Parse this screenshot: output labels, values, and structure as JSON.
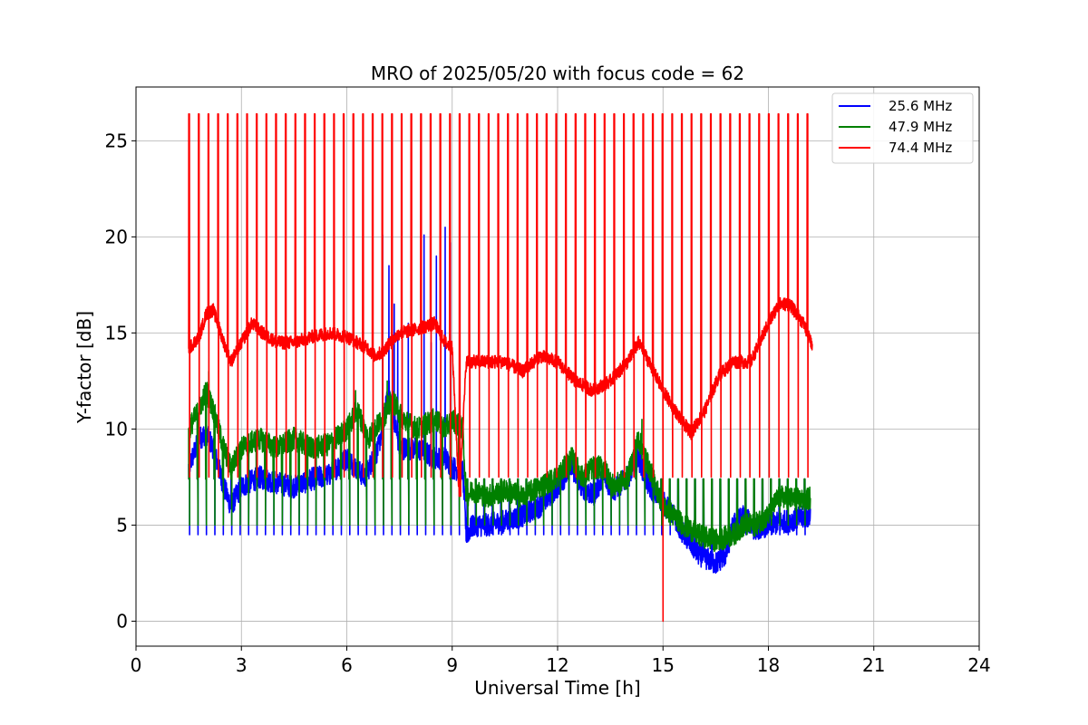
{
  "chart_data": {
    "type": "line",
    "title": "MRO of 2025/05/20 with focus code = 62",
    "xlabel": "Universal Time [h]",
    "ylabel": "Y-factor [dB]",
    "xlim": [
      0,
      24
    ],
    "ylim": [
      -1.3,
      27.8
    ],
    "xticks": [
      0,
      3,
      6,
      9,
      12,
      15,
      18,
      21,
      24
    ],
    "yticks": [
      0,
      5,
      10,
      15,
      20,
      25
    ],
    "grid": true,
    "legend_position": "top-right",
    "series": [
      {
        "name": "25.6 MHz",
        "color": "#0000ff",
        "baseline": [
          [
            1.5,
            8.0
          ],
          [
            1.8,
            9.5
          ],
          [
            2.0,
            9.8
          ],
          [
            2.2,
            9.0
          ],
          [
            2.5,
            7.0
          ],
          [
            2.7,
            6.0
          ],
          [
            3.0,
            7.0
          ],
          [
            3.5,
            7.5
          ],
          [
            4.0,
            7.2
          ],
          [
            4.5,
            7.0
          ],
          [
            5.0,
            7.4
          ],
          [
            5.5,
            7.6
          ],
          [
            6.0,
            8.5
          ],
          [
            6.5,
            7.5
          ],
          [
            6.9,
            9.0
          ],
          [
            7.2,
            12.0
          ],
          [
            7.5,
            9.0
          ],
          [
            8.0,
            9.0
          ],
          [
            8.5,
            8.5
          ],
          [
            8.8,
            8.5
          ],
          [
            9.0,
            8.0
          ],
          [
            9.3,
            7.8
          ],
          [
            9.4,
            4.5
          ],
          [
            9.6,
            5.0
          ],
          [
            10.0,
            5.0
          ],
          [
            10.5,
            5.2
          ],
          [
            11.0,
            5.5
          ],
          [
            11.5,
            6.0
          ],
          [
            12.0,
            7.0
          ],
          [
            12.4,
            8.0
          ],
          [
            12.7,
            7.0
          ],
          [
            13.0,
            6.5
          ],
          [
            13.3,
            7.5
          ],
          [
            13.6,
            6.8
          ],
          [
            14.0,
            7.5
          ],
          [
            14.3,
            8.5
          ],
          [
            14.6,
            7.0
          ],
          [
            15.0,
            6.2
          ],
          [
            15.3,
            5.5
          ],
          [
            15.6,
            4.5
          ],
          [
            16.0,
            3.5
          ],
          [
            16.5,
            3.0
          ],
          [
            16.8,
            3.5
          ],
          [
            17.0,
            5.0
          ],
          [
            17.3,
            5.5
          ],
          [
            17.6,
            4.8
          ],
          [
            18.0,
            5.0
          ],
          [
            18.5,
            5.2
          ],
          [
            19.0,
            5.4
          ],
          [
            19.2,
            5.5
          ]
        ],
        "pulses": {
          "start": 1.5,
          "step": 0.24,
          "end": 19.2,
          "high": 7.4,
          "low": 4.5
        },
        "spikes": [
          [
            7.02,
            20.1
          ],
          [
            7.2,
            18.5
          ],
          [
            7.45,
            15.0
          ],
          [
            7.75,
            15.5
          ],
          [
            8.2,
            20.1
          ],
          [
            8.55,
            19.0
          ],
          [
            8.8,
            20.5
          ],
          [
            8.95,
            19.7
          ],
          [
            7.35,
            16.5
          ],
          [
            8.4,
            14.5
          ]
        ]
      },
      {
        "name": "47.9 MHz",
        "color": "#008000",
        "baseline": [
          [
            1.5,
            10.0
          ],
          [
            1.8,
            11.0
          ],
          [
            2.0,
            12.0
          ],
          [
            2.2,
            11.0
          ],
          [
            2.5,
            9.0
          ],
          [
            2.7,
            8.0
          ],
          [
            3.0,
            9.0
          ],
          [
            3.5,
            9.5
          ],
          [
            4.0,
            9.0
          ],
          [
            4.5,
            9.5
          ],
          [
            5.0,
            9.0
          ],
          [
            5.5,
            9.2
          ],
          [
            6.0,
            10.0
          ],
          [
            6.3,
            11.0
          ],
          [
            6.6,
            9.5
          ],
          [
            7.0,
            10.5
          ],
          [
            7.3,
            11.5
          ],
          [
            7.6,
            10.5
          ],
          [
            8.0,
            10.0
          ],
          [
            8.5,
            10.5
          ],
          [
            8.8,
            10.0
          ],
          [
            9.0,
            10.5
          ],
          [
            9.3,
            10.0
          ],
          [
            9.4,
            6.5
          ],
          [
            9.6,
            6.8
          ],
          [
            10.0,
            6.5
          ],
          [
            10.5,
            6.8
          ],
          [
            11.0,
            6.5
          ],
          [
            11.5,
            7.0
          ],
          [
            12.0,
            7.5
          ],
          [
            12.4,
            8.5
          ],
          [
            12.7,
            7.5
          ],
          [
            13.0,
            8.0
          ],
          [
            13.3,
            8.0
          ],
          [
            13.6,
            7.0
          ],
          [
            14.0,
            7.5
          ],
          [
            14.3,
            9.5
          ],
          [
            14.6,
            8.0
          ],
          [
            15.0,
            6.0
          ],
          [
            15.3,
            5.5
          ],
          [
            15.6,
            5.0
          ],
          [
            16.0,
            4.5
          ],
          [
            16.5,
            4.2
          ],
          [
            17.0,
            4.5
          ],
          [
            17.3,
            5.0
          ],
          [
            17.6,
            5.0
          ],
          [
            18.0,
            5.5
          ],
          [
            18.3,
            6.5
          ],
          [
            18.6,
            6.4
          ],
          [
            19.0,
            6.3
          ],
          [
            19.2,
            6.4
          ]
        ],
        "pulses": {
          "start": 1.5,
          "step": 0.24,
          "end": 19.2,
          "high": 7.4,
          "low": 5.0
        },
        "spikes": [
          [
            2.07,
            13.0
          ],
          [
            6.25,
            12.0
          ],
          [
            7.15,
            12.5
          ],
          [
            12.25,
            8.8
          ],
          [
            14.4,
            10.5
          ]
        ]
      },
      {
        "name": "74.4 MHz",
        "color": "#ff0000",
        "baseline": [
          [
            1.5,
            14.2
          ],
          [
            1.8,
            14.8
          ],
          [
            2.0,
            16.0
          ],
          [
            2.2,
            16.2
          ],
          [
            2.5,
            14.5
          ],
          [
            2.7,
            13.5
          ],
          [
            3.0,
            14.5
          ],
          [
            3.3,
            15.5
          ],
          [
            3.6,
            15.0
          ],
          [
            4.0,
            14.5
          ],
          [
            4.5,
            14.5
          ],
          [
            5.0,
            14.8
          ],
          [
            5.5,
            15.0
          ],
          [
            6.0,
            14.8
          ],
          [
            6.3,
            14.5
          ],
          [
            6.6,
            14.2
          ],
          [
            6.8,
            13.8
          ],
          [
            7.0,
            14.0
          ],
          [
            7.5,
            15.0
          ],
          [
            8.0,
            15.2
          ],
          [
            8.5,
            15.5
          ],
          [
            8.8,
            14.5
          ],
          [
            9.0,
            14.2
          ],
          [
            9.2,
            6.5
          ],
          [
            9.4,
            13.5
          ],
          [
            9.8,
            13.5
          ],
          [
            10.5,
            13.5
          ],
          [
            11.0,
            13.0
          ],
          [
            11.5,
            13.8
          ],
          [
            12.0,
            13.5
          ],
          [
            12.5,
            12.5
          ],
          [
            13.0,
            12.0
          ],
          [
            13.5,
            12.5
          ],
          [
            14.0,
            13.5
          ],
          [
            14.3,
            14.5
          ],
          [
            14.6,
            13.5
          ],
          [
            15.0,
            12.0
          ],
          [
            15.5,
            10.5
          ],
          [
            15.8,
            9.8
          ],
          [
            16.2,
            11.0
          ],
          [
            16.6,
            12.8
          ],
          [
            17.0,
            13.5
          ],
          [
            17.5,
            13.5
          ],
          [
            18.0,
            15.5
          ],
          [
            18.3,
            16.5
          ],
          [
            18.6,
            16.5
          ],
          [
            19.0,
            15.5
          ],
          [
            19.25,
            14.3
          ]
        ],
        "pulses": {
          "start": 1.5,
          "step": 0.275,
          "end": 19.2,
          "high": 26.4,
          "low": 7.5
        },
        "spikes": [
          [
            15.0,
            0.0
          ]
        ]
      }
    ]
  }
}
